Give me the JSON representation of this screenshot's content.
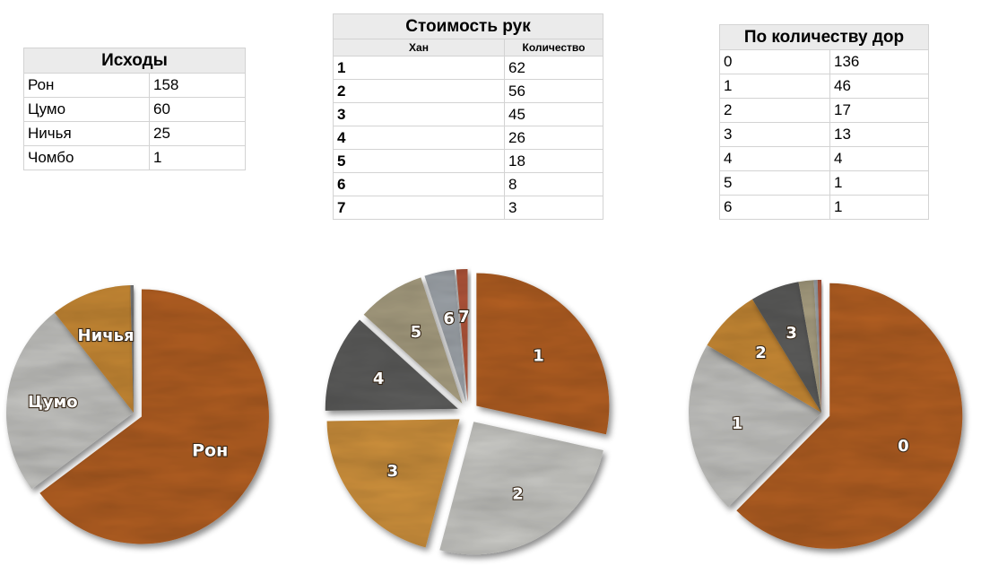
{
  "tables": {
    "outcomes": {
      "title": "Исходы",
      "rows": [
        {
          "label": "Рон",
          "value": "158"
        },
        {
          "label": "Цумо",
          "value": "60"
        },
        {
          "label": "Ничья",
          "value": "25"
        },
        {
          "label": "Чомбо",
          "value": "1"
        }
      ]
    },
    "hand_cost": {
      "title": "Стоимость рук",
      "col1": "Хан",
      "col2": "Количество",
      "rows": [
        {
          "label": "1",
          "value": "62"
        },
        {
          "label": "2",
          "value": "56"
        },
        {
          "label": "3",
          "value": "45"
        },
        {
          "label": "4",
          "value": "26"
        },
        {
          "label": "5",
          "value": "18"
        },
        {
          "label": "6",
          "value": "8"
        },
        {
          "label": "7",
          "value": "3"
        }
      ]
    },
    "dora": {
      "title": "По количеству дор",
      "rows": [
        {
          "label": "0",
          "value": "136"
        },
        {
          "label": "1",
          "value": "46"
        },
        {
          "label": "2",
          "value": "17"
        },
        {
          "label": "3",
          "value": "13"
        },
        {
          "label": "4",
          "value": "4"
        },
        {
          "label": "5",
          "value": "1"
        },
        {
          "label": "6",
          "value": "1"
        }
      ]
    }
  },
  "chart_data": [
    {
      "type": "pie",
      "title": "Исходы",
      "categories": [
        "Рон",
        "Цумо",
        "Ничья",
        "Чомбо"
      ],
      "values": [
        158,
        60,
        25,
        1
      ],
      "slice_labels": [
        "Рон",
        "Цумо",
        "Ничья",
        ""
      ],
      "colors": [
        "#b35f22",
        "#c6c6c3",
        "#c98a36",
        "#777777"
      ]
    },
    {
      "type": "pie",
      "title": "Стоимость рук",
      "categories": [
        "1",
        "2",
        "3",
        "4",
        "5",
        "6",
        "7"
      ],
      "values": [
        62,
        56,
        45,
        26,
        18,
        8,
        3
      ],
      "slice_labels": [
        "1",
        "2",
        "3",
        "4",
        "5",
        "6",
        "7"
      ],
      "colors": [
        "#b35f22",
        "#c8c8c4",
        "#d0923c",
        "#5d5d5b",
        "#aca284",
        "#a0a6ac",
        "#b3563a"
      ],
      "exploded": true
    },
    {
      "type": "pie",
      "title": "По количеству дор",
      "categories": [
        "0",
        "1",
        "2",
        "3",
        "4",
        "5",
        "6"
      ],
      "values": [
        136,
        46,
        17,
        13,
        4,
        1,
        1
      ],
      "slice_labels": [
        "0",
        "1",
        "2",
        "3",
        "",
        "",
        ""
      ],
      "colors": [
        "#b35f22",
        "#c6c6c3",
        "#c98a36",
        "#5d5d5b",
        "#aca284",
        "#a0a6ac",
        "#b3563a"
      ]
    }
  ]
}
